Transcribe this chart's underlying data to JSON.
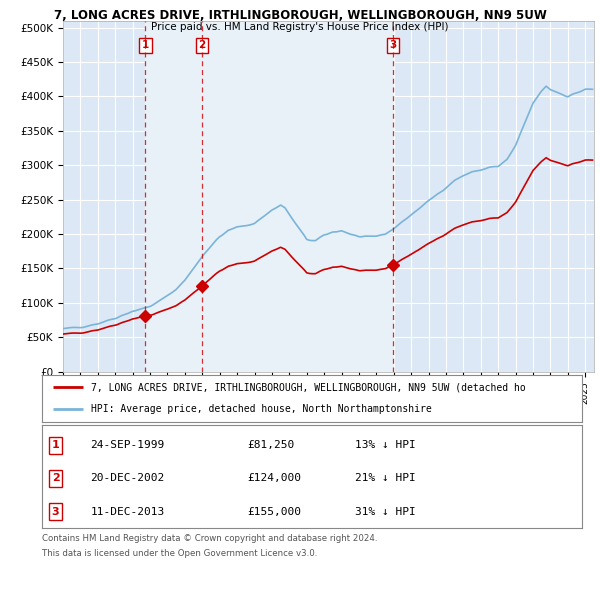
{
  "title1": "7, LONG ACRES DRIVE, IRTHLINGBOROUGH, WELLINGBOROUGH, NN9 5UW",
  "title2": "Price paid vs. HM Land Registry's House Price Index (HPI)",
  "ytick_labels": [
    "£0",
    "£50K",
    "£100K",
    "£150K",
    "£200K",
    "£250K",
    "£300K",
    "£350K",
    "£400K",
    "£450K",
    "£500K"
  ],
  "yticks": [
    0,
    50000,
    100000,
    150000,
    200000,
    250000,
    300000,
    350000,
    400000,
    450000,
    500000
  ],
  "xmin": 1995.0,
  "xmax": 2025.5,
  "ymin": 0,
  "ymax": 510000,
  "hpi_color": "#7ab4d8",
  "price_color": "#cc0000",
  "vline_color": "#cc0000",
  "shade_color": "#ddeeff",
  "grid_color": "#ffffff",
  "plot_bg_color": "#dce8f5",
  "background_color": "#ffffff",
  "transactions": [
    {
      "date": 1999.73,
      "price": 81250,
      "label": "1"
    },
    {
      "date": 2002.97,
      "price": 124000,
      "label": "2"
    },
    {
      "date": 2013.95,
      "price": 155000,
      "label": "3"
    }
  ],
  "table_rows": [
    {
      "num": "1",
      "date": "24-SEP-1999",
      "price": "£81,250",
      "note": "13% ↓ HPI"
    },
    {
      "num": "2",
      "date": "20-DEC-2002",
      "price": "£124,000",
      "note": "21% ↓ HPI"
    },
    {
      "num": "3",
      "date": "11-DEC-2013",
      "price": "£155,000",
      "note": "31% ↓ HPI"
    }
  ],
  "legend_line1": "7, LONG ACRES DRIVE, IRTHLINGBOROUGH, WELLINGBOROUGH, NN9 5UW (detached ho",
  "legend_line2": "HPI: Average price, detached house, North Northamptonshire",
  "footnote1": "Contains HM Land Registry data © Crown copyright and database right 2024.",
  "footnote2": "This data is licensed under the Open Government Licence v3.0."
}
